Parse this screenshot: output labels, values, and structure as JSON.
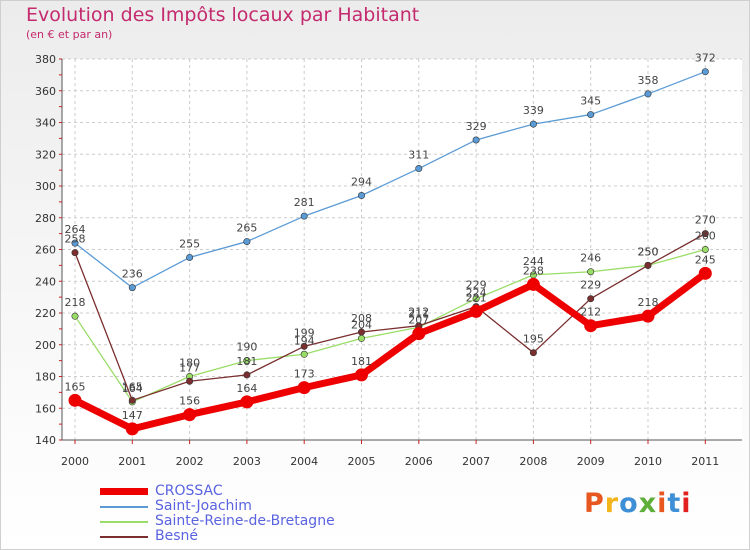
{
  "title": "Evolution des Impôts locaux par Habitant",
  "subtitle": "(en € et par an)",
  "logo": {
    "text": "Proxiti",
    "colors": [
      "#e8571f",
      "#f2b51b",
      "#3f8fd6",
      "#5fae3a",
      "#e8571f",
      "#3f8fd6",
      "#e2201f"
    ]
  },
  "chart_data": {
    "type": "line",
    "title": "Evolution des Impôts locaux par Habitant",
    "subtitle": "(en € et par an)",
    "xlabel": "",
    "ylabel": "",
    "x": [
      "2000",
      "2001",
      "2002",
      "2003",
      "2004",
      "2005",
      "2006",
      "2007",
      "2008",
      "2009",
      "2010",
      "2011"
    ],
    "ylim": [
      140,
      380
    ],
    "yticks": [
      140,
      160,
      180,
      200,
      220,
      240,
      260,
      280,
      300,
      320,
      340,
      360,
      380
    ],
    "grid": true,
    "legend_position": "bottom-left",
    "series": [
      {
        "name": "CROSSAC",
        "color": "#ee0000",
        "values": [
          165,
          147,
          156,
          164,
          173,
          181,
          207,
          221,
          238,
          212,
          218,
          245
        ]
      },
      {
        "name": "Saint-Joachim",
        "color": "#5b9bd5",
        "values": [
          264,
          236,
          255,
          265,
          281,
          294,
          311,
          329,
          339,
          345,
          358,
          372
        ]
      },
      {
        "name": "Sainte-Reine-de-Bretagne",
        "color": "#99dd66",
        "values": [
          218,
          164,
          180,
          190,
          194,
          204,
          211,
          229,
          244,
          246,
          250,
          260
        ]
      },
      {
        "name": "Besné",
        "color": "#7a2e2e",
        "values": [
          258,
          165,
          177,
          181,
          199,
          208,
          212,
          224,
          195,
          229,
          250,
          270
        ]
      }
    ]
  }
}
